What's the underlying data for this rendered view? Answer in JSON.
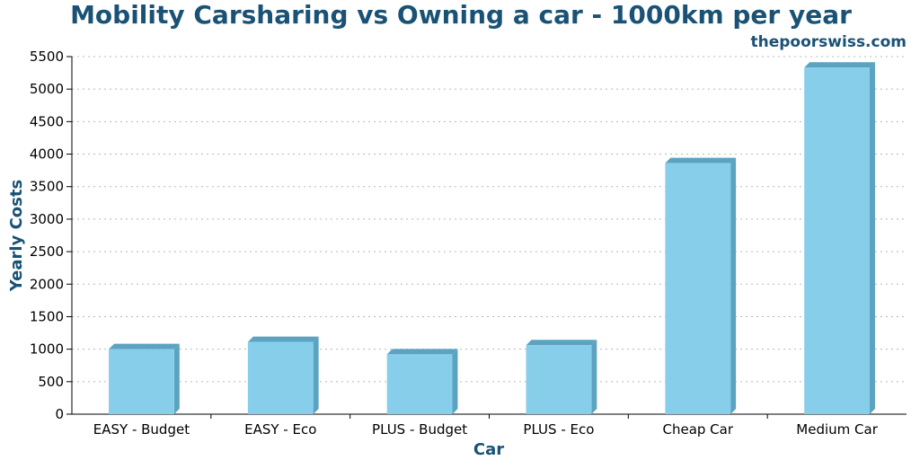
{
  "chart_data": {
    "type": "bar",
    "title": "Mobility Carsharing vs Owning a car - 1000km per year",
    "subtitle": "thepoorswiss.com",
    "xlabel": "Car",
    "ylabel": "Yearly Costs",
    "categories": [
      "EASY - Budget",
      "EASY - Eco",
      "PLUS - Budget",
      "PLUS - Eco",
      "Cheap Car",
      "Medium Car"
    ],
    "values": [
      1000,
      1110,
      920,
      1060,
      3860,
      5330
    ],
    "ylim": [
      0,
      5500
    ],
    "yticks": [
      0,
      500,
      1000,
      1500,
      2000,
      2500,
      3000,
      3500,
      4000,
      4500,
      5000,
      5500
    ],
    "grid": true,
    "colors": {
      "bar_front": "#87ceeb",
      "bar_side": "#5ba3c0",
      "title": "#1a5276",
      "grid": "#b8b8b8"
    }
  }
}
